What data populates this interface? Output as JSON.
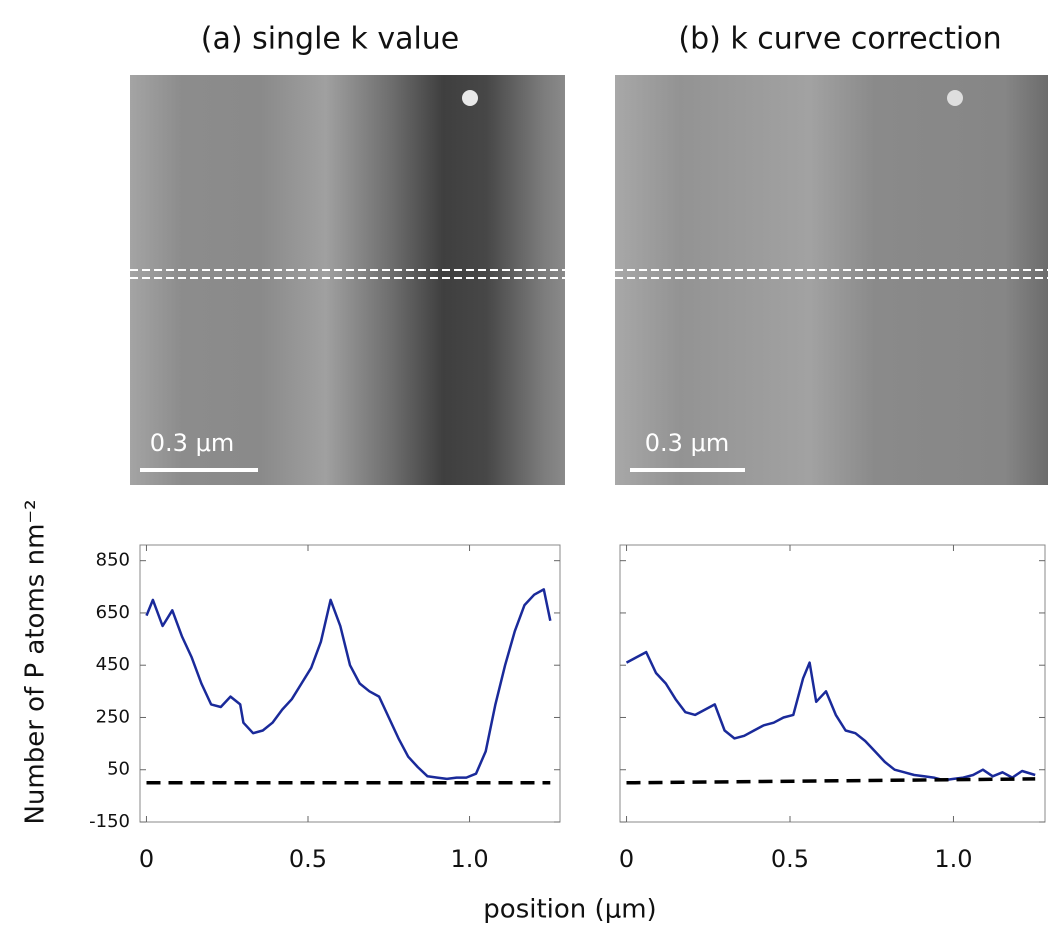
{
  "chart_data": [
    {
      "type": "line",
      "title": "(a) single k value",
      "scale_bar_label": "0.3 μm",
      "ylabel": "Number of P atoms nm⁻²",
      "xlabel": "position (μm)",
      "xlim": [
        -0.02,
        1.28
      ],
      "xticks": [
        0,
        0.5,
        {
          "value": 1.0,
          "label": "1.0"
        }
      ],
      "ylim": [
        -150,
        910
      ],
      "yticks": [
        -150,
        50,
        250,
        450,
        650,
        850
      ],
      "show_ytick_labels": true,
      "series": [
        {
          "color": "#1a2a9a",
          "x": [
            0,
            0.02,
            0.05,
            0.08,
            0.11,
            0.14,
            0.17,
            0.2,
            0.23,
            0.26,
            0.29,
            0.3,
            0.33,
            0.36,
            0.39,
            0.42,
            0.45,
            0.48,
            0.51,
            0.54,
            0.57,
            0.6,
            0.63,
            0.66,
            0.69,
            0.72,
            0.75,
            0.78,
            0.81,
            0.84,
            0.87,
            0.9,
            0.93,
            0.96,
            0.99,
            1.02,
            1.05,
            1.08,
            1.11,
            1.14,
            1.17,
            1.2,
            1.23,
            1.25
          ],
          "values": [
            640,
            700,
            600,
            660,
            560,
            480,
            380,
            300,
            290,
            330,
            300,
            230,
            190,
            200,
            230,
            280,
            320,
            380,
            440,
            540,
            700,
            600,
            450,
            380,
            350,
            330,
            250,
            170,
            100,
            60,
            25,
            20,
            15,
            20,
            20,
            35,
            120,
            300,
            450,
            580,
            680,
            720,
            740,
            620
          ]
        },
        {
          "color": "#000000",
          "dashed": true,
          "x": [
            0,
            1.25
          ],
          "values": [
            0,
            0
          ]
        }
      ]
    },
    {
      "type": "line",
      "title": "(b) k curve correction",
      "scale_bar_label": "0.3 μm",
      "xlim": [
        -0.02,
        1.28
      ],
      "xticks": [
        0,
        0.5,
        {
          "value": 1.0,
          "label": "1.0"
        }
      ],
      "ylim": [
        -150,
        910
      ],
      "yticks": [
        -150,
        50,
        250,
        450,
        650,
        850
      ],
      "show_ytick_labels": false,
      "series": [
        {
          "color": "#1a2a9a",
          "x": [
            0,
            0.03,
            0.06,
            0.09,
            0.12,
            0.15,
            0.18,
            0.21,
            0.24,
            0.27,
            0.3,
            0.33,
            0.36,
            0.39,
            0.42,
            0.45,
            0.48,
            0.51,
            0.54,
            0.56,
            0.58,
            0.61,
            0.64,
            0.67,
            0.7,
            0.73,
            0.76,
            0.79,
            0.82,
            0.85,
            0.88,
            0.91,
            0.94,
            0.97,
            1.0,
            1.03,
            1.06,
            1.09,
            1.12,
            1.15,
            1.18,
            1.21,
            1.25
          ],
          "values": [
            460,
            480,
            500,
            420,
            380,
            320,
            270,
            260,
            280,
            300,
            200,
            170,
            180,
            200,
            220,
            230,
            250,
            260,
            400,
            460,
            310,
            350,
            260,
            200,
            190,
            160,
            120,
            80,
            50,
            40,
            30,
            25,
            20,
            10,
            15,
            20,
            30,
            50,
            25,
            40,
            20,
            45,
            30
          ]
        },
        {
          "color": "#000000",
          "dashed": true,
          "x": [
            0,
            1.25
          ],
          "values": [
            0,
            15
          ]
        }
      ]
    }
  ]
}
